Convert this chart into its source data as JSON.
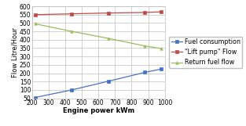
{
  "x": [
    220,
    440,
    660,
    880,
    980
  ],
  "fuel_consumption": [
    55,
    100,
    152,
    205,
    225
  ],
  "lift_pump_flow": [
    550,
    555,
    560,
    563,
    567
  ],
  "return_fuel_flow": [
    495,
    450,
    408,
    363,
    347
  ],
  "xlabel": "Engine power kWm",
  "ylabel": "Flow Litre/Hour",
  "xlim": [
    200,
    1000
  ],
  "ylim": [
    50,
    600
  ],
  "xticks": [
    200,
    300,
    400,
    500,
    600,
    700,
    800,
    900,
    1000
  ],
  "yticks": [
    50,
    100,
    150,
    200,
    250,
    300,
    350,
    400,
    450,
    500,
    550,
    600
  ],
  "legend_labels": [
    "Fuel consumption",
    "\"Lift pump\" Flow",
    "Return fuel flow"
  ],
  "line_colors": [
    "#4472C4",
    "#BE4B48",
    "#9BBB59"
  ],
  "markers": [
    "s",
    "s",
    "^"
  ],
  "bg_color": "#FFFFFF",
  "plot_bg_color": "#FFFFFF",
  "grid_color": "#BFBFBF",
  "font_size": 5.5,
  "label_font_size": 6,
  "legend_font_size": 5.8,
  "xlabel_bold": true,
  "ylabel_bold": false
}
